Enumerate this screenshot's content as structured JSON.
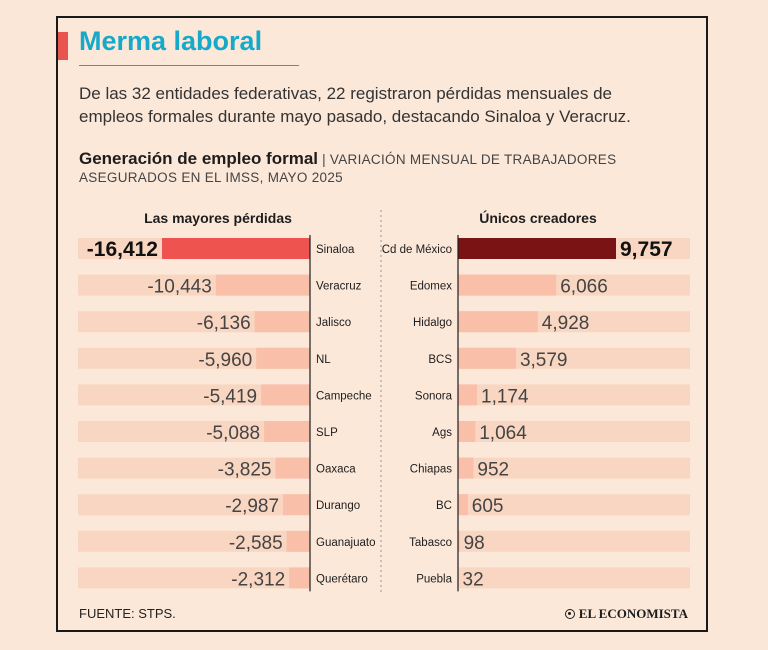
{
  "header": {
    "title": "Merma laboral",
    "intro": "De las 32 entidades federativas, 22 registraron pérdidas mensuales de empleos formales durante mayo pasado, destacando Sinaloa y Veracruz.",
    "subtitle_bold": "Generación de empleo formal",
    "subtitle_rest": " | VARIACIÓN MENSUAL DE TRABAJADORES ASEGURADOS EN EL IMSS, MAYO 2025"
  },
  "footer": {
    "source": "FUENTE: STPS.",
    "logo": "EL ECONOMISTA"
  },
  "chart_data": [
    {
      "type": "bar",
      "title": "Las mayores pérdidas",
      "categories": [
        "Sinaloa",
        "Veracruz",
        "Jalisco",
        "NL",
        "Campeche",
        "SLP",
        "Oaxaca",
        "Durango",
        "Guanajuato",
        "Querétaro"
      ],
      "values": [
        -16412,
        -10443,
        -6136,
        -5960,
        -5419,
        -5088,
        -3825,
        -2987,
        -2585,
        -2312
      ],
      "labels": [
        "-16,412",
        "-10,443",
        "-6,136",
        "-5,960",
        "-5,419",
        "-5,088",
        "-3,825",
        "-2,987",
        "-2,585",
        "-2,312"
      ],
      "highlight_color": "#ef5350",
      "bar_color": "#f9bfa8",
      "track_color": "#f8d6c2"
    },
    {
      "type": "bar",
      "title": "Únicos creadores",
      "categories": [
        "Cd de México",
        "Edomex",
        "Hidalgo",
        "BCS",
        "Sonora",
        "Ags",
        "Chiapas",
        "BC",
        "Tabasco",
        "Puebla"
      ],
      "values": [
        9757,
        6066,
        4928,
        3579,
        1174,
        1064,
        952,
        605,
        98,
        32
      ],
      "labels": [
        "9,757",
        "6,066",
        "4,928",
        "3,579",
        "1,174",
        "1,064",
        "952",
        "605",
        "98",
        "32"
      ],
      "highlight_color": "#7a1414",
      "bar_color": "#f9bfa8",
      "track_color": "#f8d6c2"
    }
  ]
}
